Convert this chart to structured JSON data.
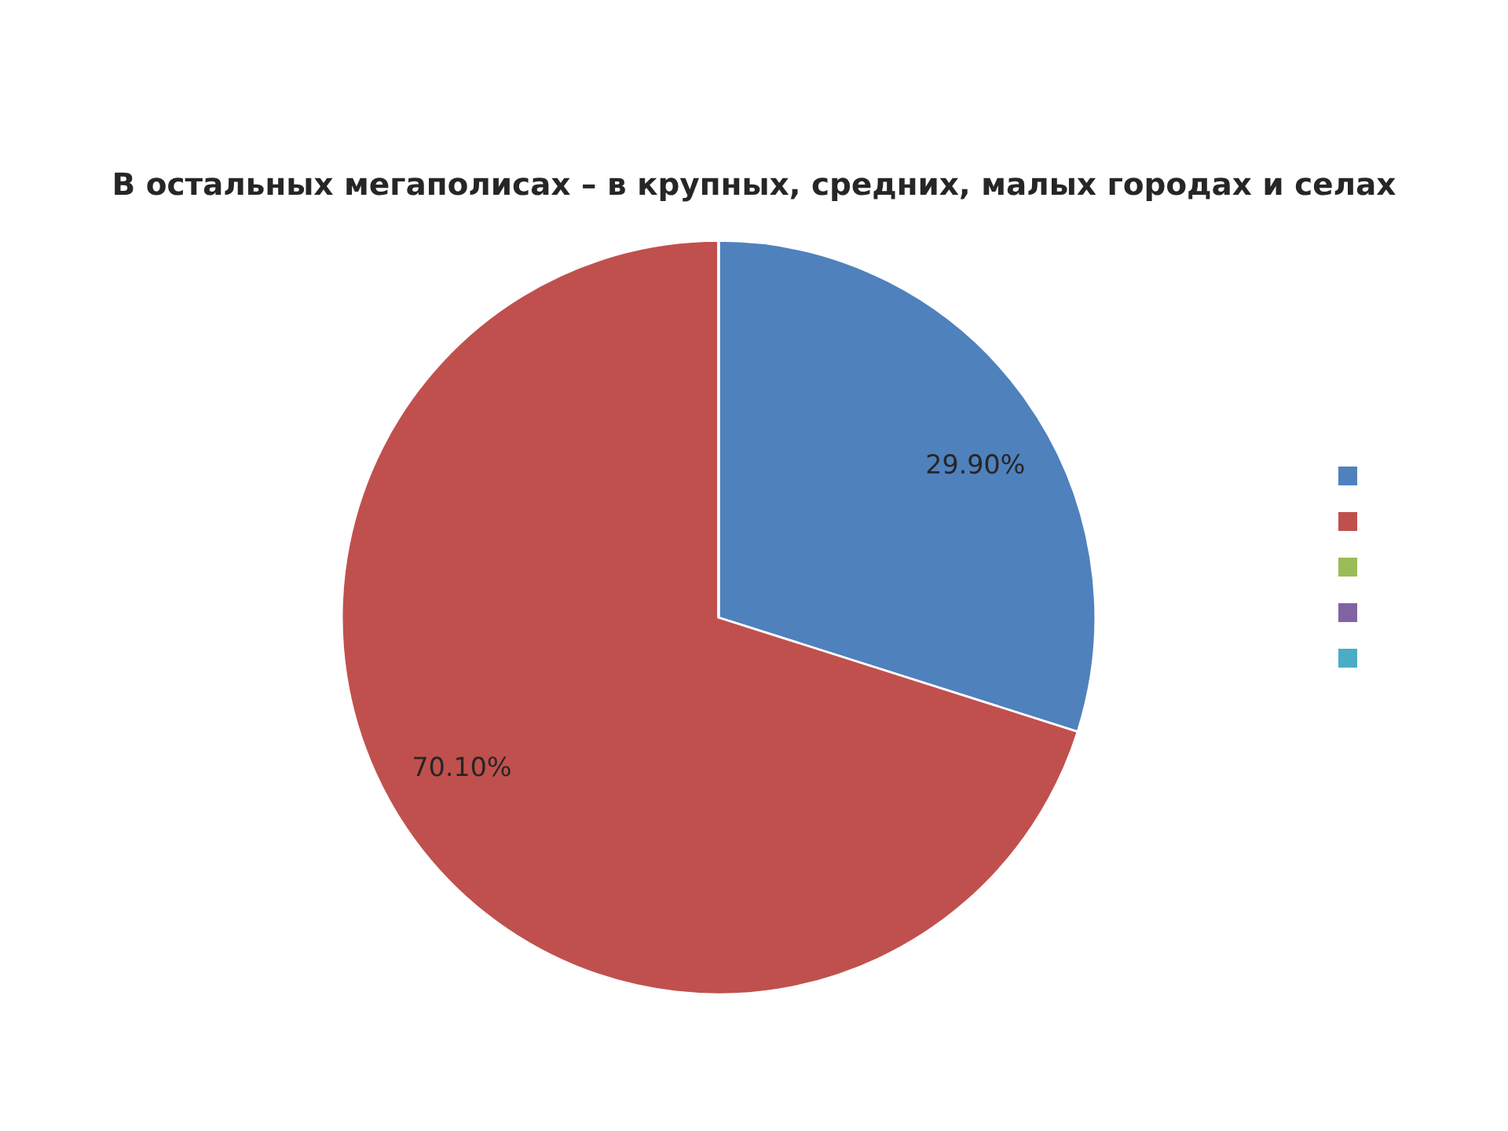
{
  "chart_data": {
    "type": "pie",
    "title": "В остальных мегаполисах – в крупных, средних, малых городах и селах",
    "categories": [
      null,
      null,
      null,
      null,
      null
    ],
    "values": [
      29.9,
      70.1,
      0,
      0,
      0
    ],
    "value_labels": [
      "29.90%",
      "70.10%",
      null,
      null,
      null
    ],
    "colors": [
      "#4f81bd",
      "#c0504d",
      "#9bbb59",
      "#8064a2",
      "#4bacc6"
    ]
  }
}
